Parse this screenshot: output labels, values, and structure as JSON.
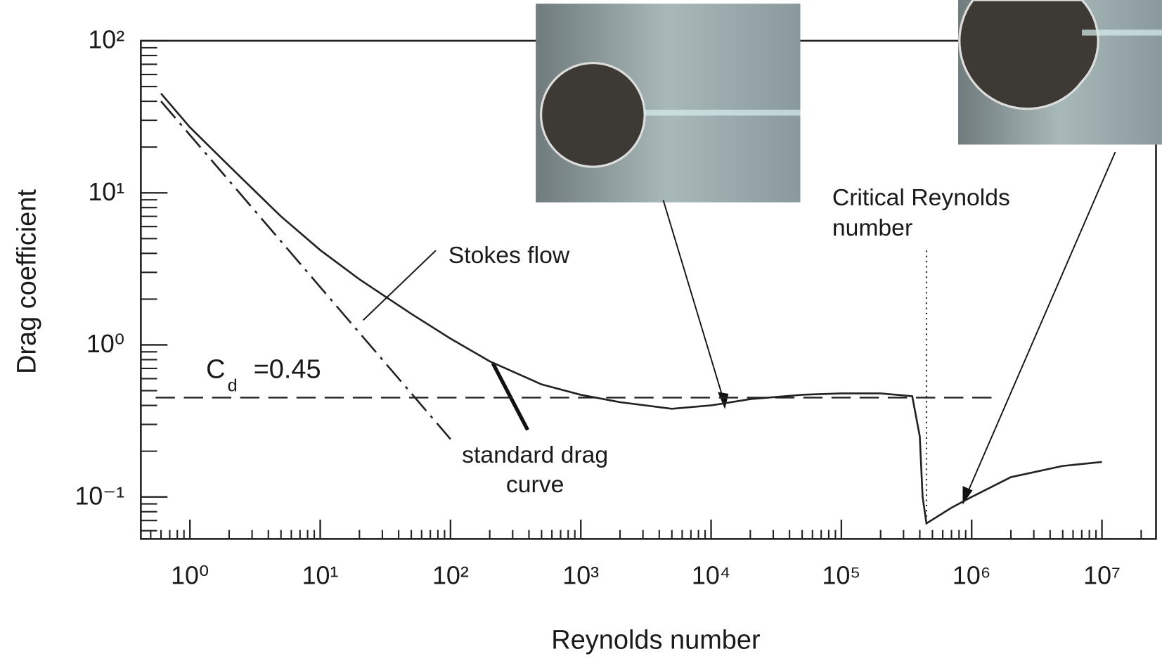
{
  "chart_data": {
    "type": "line",
    "x_label": "Reynolds number",
    "y_label": "Drag coefficient",
    "xlog": true,
    "ylog": true,
    "xlim": [
      0.42,
      26000000
    ],
    "ylim": [
      0.053,
      100
    ],
    "xticks": [
      {
        "value": 1,
        "label": "10⁰"
      },
      {
        "value": 10,
        "label": "10¹"
      },
      {
        "value": 100,
        "label": "10²"
      },
      {
        "value": 1000,
        "label": "10³"
      },
      {
        "value": 10000,
        "label": "10⁴"
      },
      {
        "value": 100000,
        "label": "10⁵"
      },
      {
        "value": 1000000,
        "label": "10⁶"
      },
      {
        "value": 10000000,
        "label": "10⁷"
      }
    ],
    "yticks": [
      {
        "value": 0.1,
        "label": "10⁻¹"
      },
      {
        "value": 1,
        "label": "10⁰"
      },
      {
        "value": 10,
        "label": "10¹"
      },
      {
        "value": 100,
        "label": "10²"
      }
    ],
    "series": [
      {
        "color": "#222222",
        "style": "solid",
        "x": [
          0.6,
          1,
          2,
          5,
          10,
          20,
          50,
          100,
          200,
          500,
          1000,
          2000,
          5000,
          10000,
          20000,
          50000,
          100000,
          200000,
          350000,
          400000,
          420000,
          450000,
          700000,
          1000000,
          2000000,
          5000000,
          10000000
        ],
        "values": [
          45,
          27,
          15,
          7,
          4.2,
          2.7,
          1.6,
          1.1,
          0.78,
          0.55,
          0.47,
          0.42,
          0.38,
          0.4,
          0.44,
          0.47,
          0.48,
          0.48,
          0.46,
          0.25,
          0.1,
          0.067,
          0.085,
          0.1,
          0.135,
          0.16,
          0.17
        ]
      },
      {
        "color": "#222222",
        "style": "dashdot",
        "x": [
          0.6,
          100
        ],
        "values": [
          40,
          0.24
        ]
      }
    ],
    "reference_line": {
      "value": 0.45,
      "x_end": 1500000,
      "label_main": "C",
      "label_sub": "d",
      "label_rest": "=0.45"
    },
    "critical_line": {
      "x": 450000,
      "label": [
        "Critical Reynolds",
        "number"
      ]
    },
    "annotations": {
      "stokes": "Stokes flow",
      "standard": [
        "standard drag",
        "curve"
      ]
    }
  }
}
